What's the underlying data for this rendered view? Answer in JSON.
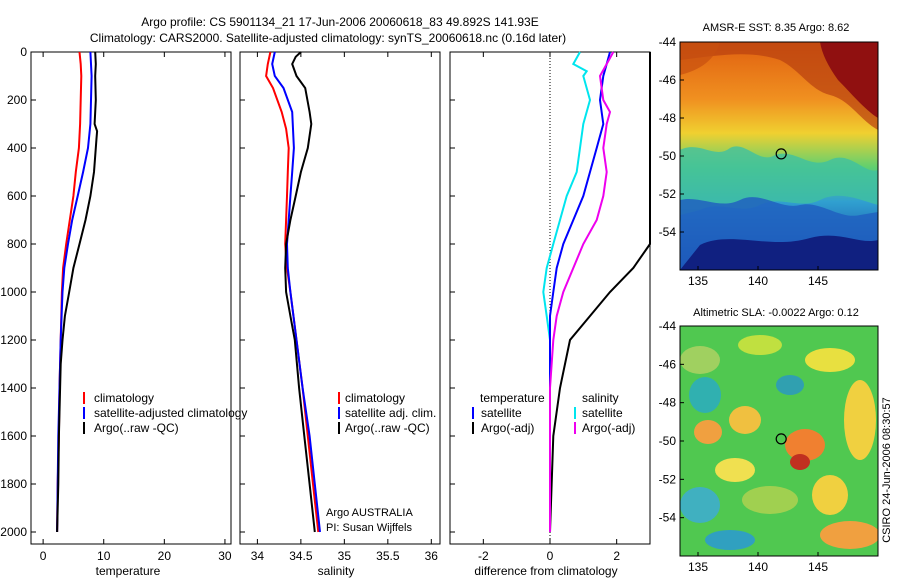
{
  "header": {
    "line1": "Argo profile: CS 5901134_21 17-Jun-2006 20060618_83 49.892S 141.93E",
    "line2": "Climatology: CARS2000. Satellite-adjusted climatology: synTS_20060618.nc (0.16d later)"
  },
  "credit": "CSIRO 24-Jun-2006 08:30:57",
  "colors": {
    "climatology": "#ff0000",
    "satellite": "#0000ff",
    "argo": "#000000",
    "temp_satellite_diff": "#00e5ee",
    "salinity_argo_diff": "#ee00ee"
  },
  "chart_data": [
    {
      "type": "line",
      "name": "temperature-profile",
      "xlabel": "temperature",
      "xlim": [
        -2,
        31
      ],
      "ylim": [
        0,
        2050
      ],
      "y_reversed": true,
      "xticks": [
        0,
        10,
        20,
        30
      ],
      "yticks": [
        0,
        200,
        400,
        600,
        800,
        1000,
        1200,
        1400,
        1600,
        1800,
        2000
      ],
      "legend": [
        "climatology",
        "satellite-adjusted climatology",
        "Argo(..raw -QC)"
      ],
      "series": [
        {
          "key": "climatology",
          "color": "#ff0000",
          "points": [
            [
              6.0,
              0
            ],
            [
              6.2,
              50
            ],
            [
              6.3,
              100
            ],
            [
              6.2,
              200
            ],
            [
              6.1,
              300
            ],
            [
              5.9,
              400
            ],
            [
              5.4,
              500
            ],
            [
              5.0,
              600
            ],
            [
              4.4,
              700
            ],
            [
              3.8,
              800
            ],
            [
              3.3,
              900
            ],
            [
              3.1,
              1000
            ],
            [
              2.9,
              1200
            ],
            [
              2.7,
              1400
            ],
            [
              2.6,
              1600
            ],
            [
              2.4,
              1800
            ],
            [
              2.3,
              2000
            ]
          ]
        },
        {
          "key": "satellite",
          "color": "#0000ff",
          "points": [
            [
              7.8,
              0
            ],
            [
              7.9,
              50
            ],
            [
              8.0,
              100
            ],
            [
              7.9,
              200
            ],
            [
              7.8,
              300
            ],
            [
              7.4,
              400
            ],
            [
              6.6,
              500
            ],
            [
              5.7,
              600
            ],
            [
              4.8,
              700
            ],
            [
              4.1,
              800
            ],
            [
              3.5,
              900
            ],
            [
              3.2,
              1000
            ],
            [
              2.9,
              1200
            ],
            [
              2.7,
              1400
            ],
            [
              2.5,
              1600
            ],
            [
              2.4,
              1800
            ],
            [
              2.3,
              2000
            ]
          ]
        },
        {
          "key": "argo",
          "color": "#000000",
          "points": [
            [
              8.6,
              0
            ],
            [
              8.7,
              50
            ],
            [
              8.6,
              100
            ],
            [
              8.7,
              200
            ],
            [
              8.5,
              300
            ],
            [
              8.9,
              330
            ],
            [
              8.8,
              360
            ],
            [
              8.7,
              400
            ],
            [
              8.4,
              500
            ],
            [
              7.8,
              600
            ],
            [
              7.0,
              700
            ],
            [
              6.0,
              800
            ],
            [
              5.0,
              900
            ],
            [
              4.3,
              1000
            ],
            [
              3.6,
              1100
            ],
            [
              3.2,
              1200
            ],
            [
              2.9,
              1300
            ],
            [
              2.8,
              1400
            ],
            [
              2.6,
              1600
            ],
            [
              2.5,
              1800
            ],
            [
              2.3,
              2000
            ]
          ]
        }
      ]
    },
    {
      "type": "line",
      "name": "salinity-profile",
      "xlabel": "salinity",
      "xlim": [
        33.8,
        36.1
      ],
      "ylim": [
        0,
        2050
      ],
      "y_reversed": true,
      "xticks": [
        34,
        34.5,
        35,
        35.5,
        36
      ],
      "xticklabels": [
        "34",
        "34.5",
        "35",
        "35.5",
        "36"
      ],
      "legend": [
        "climatology",
        "satellite adj. clim.",
        "Argo(..raw -QC)"
      ],
      "annotation": [
        "Argo AUSTRALIA",
        "PI: Susan Wijffels"
      ],
      "series": [
        {
          "key": "climatology",
          "color": "#ff0000",
          "points": [
            [
              34.15,
              0
            ],
            [
              34.12,
              50
            ],
            [
              34.1,
              100
            ],
            [
              34.18,
              150
            ],
            [
              34.28,
              250
            ],
            [
              34.33,
              320
            ],
            [
              34.36,
              400
            ],
            [
              34.35,
              500
            ],
            [
              34.34,
              600
            ],
            [
              34.33,
              700
            ],
            [
              34.32,
              800
            ],
            [
              34.34,
              900
            ],
            [
              34.38,
              1000
            ],
            [
              34.45,
              1200
            ],
            [
              34.52,
              1400
            ],
            [
              34.58,
              1600
            ],
            [
              34.64,
              1800
            ],
            [
              34.7,
              2000
            ]
          ]
        },
        {
          "key": "satellite",
          "color": "#0000ff",
          "points": [
            [
              34.2,
              0
            ],
            [
              34.17,
              50
            ],
            [
              34.2,
              100
            ],
            [
              34.3,
              150
            ],
            [
              34.4,
              250
            ],
            [
              34.42,
              400
            ],
            [
              34.4,
              500
            ],
            [
              34.38,
              600
            ],
            [
              34.36,
              700
            ],
            [
              34.34,
              800
            ],
            [
              34.35,
              900
            ],
            [
              34.38,
              1000
            ],
            [
              34.45,
              1200
            ],
            [
              34.52,
              1400
            ],
            [
              34.6,
              1600
            ],
            [
              34.66,
              1800
            ],
            [
              34.72,
              2000
            ]
          ]
        },
        {
          "key": "argo",
          "color": "#000000",
          "points": [
            [
              34.5,
              0
            ],
            [
              34.44,
              20
            ],
            [
              34.4,
              50
            ],
            [
              34.45,
              100
            ],
            [
              34.55,
              150
            ],
            [
              34.6,
              250
            ],
            [
              34.62,
              300
            ],
            [
              34.58,
              400
            ],
            [
              34.5,
              500
            ],
            [
              34.44,
              600
            ],
            [
              34.38,
              700
            ],
            [
              34.33,
              800
            ],
            [
              34.32,
              900
            ],
            [
              34.33,
              1000
            ],
            [
              34.38,
              1100
            ],
            [
              34.43,
              1200
            ],
            [
              34.48,
              1400
            ],
            [
              34.54,
              1600
            ],
            [
              34.6,
              1800
            ],
            [
              34.66,
              2000
            ]
          ]
        }
      ]
    },
    {
      "type": "line",
      "name": "difference-profile",
      "xlabel": "difference from climatology",
      "xlim": [
        -3,
        3
      ],
      "ylim": [
        0,
        2050
      ],
      "y_reversed": true,
      "xticks": [
        -2,
        0,
        2
      ],
      "legend_temperature": [
        "temperature",
        "satellite",
        "Argo(-adj)"
      ],
      "legend_salinity": [
        "salinity",
        "satellite",
        "Argo(-adj)"
      ],
      "series": [
        {
          "key": "temp_satellite",
          "color": "#00e5ee",
          "points": [
            [
              0.9,
              0
            ],
            [
              0.7,
              50
            ],
            [
              1.1,
              80
            ],
            [
              1.0,
              100
            ],
            [
              1.2,
              200
            ],
            [
              1.0,
              300
            ],
            [
              0.9,
              400
            ],
            [
              0.8,
              500
            ],
            [
              0.5,
              600
            ],
            [
              0.3,
              700
            ],
            [
              0.1,
              800
            ],
            [
              -0.1,
              900
            ],
            [
              -0.2,
              1000
            ],
            [
              -0.1,
              1100
            ],
            [
              0,
              1200
            ],
            [
              0,
              1600
            ],
            [
              0,
              2000
            ]
          ]
        },
        {
          "key": "temp_argo",
          "color": "#0000ff",
          "points": [
            [
              1.8,
              0
            ],
            [
              1.7,
              50
            ],
            [
              1.6,
              100
            ],
            [
              1.5,
              200
            ],
            [
              1.6,
              300
            ],
            [
              1.4,
              400
            ],
            [
              1.2,
              500
            ],
            [
              1.0,
              600
            ],
            [
              0.7,
              700
            ],
            [
              0.4,
              800
            ],
            [
              0.2,
              900
            ],
            [
              0.1,
              1000
            ],
            [
              0,
              1100
            ],
            [
              0,
              1400
            ],
            [
              0,
              1600
            ],
            [
              0,
              2000
            ]
          ]
        },
        {
          "key": "sal_satellite",
          "color": "#000000",
          "points": [
            [
              3.0,
              0
            ],
            [
              3.0,
              100
            ],
            [
              3.0,
              200
            ],
            [
              3.0,
              300
            ],
            [
              3.0,
              400
            ],
            [
              3.0,
              500
            ],
            [
              3.0,
              600
            ],
            [
              3.0,
              700
            ],
            [
              3.0,
              800
            ],
            [
              2.5,
              900
            ],
            [
              1.8,
              1000
            ],
            [
              1.2,
              1100
            ],
            [
              0.6,
              1200
            ],
            [
              0.3,
              1400
            ],
            [
              0.1,
              1600
            ],
            [
              0,
              2000
            ]
          ]
        },
        {
          "key": "sal_argo",
          "color": "#ee00ee",
          "points": [
            [
              1.9,
              0
            ],
            [
              1.7,
              50
            ],
            [
              1.5,
              100
            ],
            [
              1.6,
              200
            ],
            [
              1.8,
              250
            ],
            [
              1.7,
              300
            ],
            [
              1.6,
              400
            ],
            [
              1.7,
              500
            ],
            [
              1.6,
              600
            ],
            [
              1.4,
              700
            ],
            [
              1.0,
              800
            ],
            [
              0.7,
              900
            ],
            [
              0.4,
              1000
            ],
            [
              0.2,
              1100
            ],
            [
              0.1,
              1200
            ],
            [
              0,
              1400
            ],
            [
              0,
              2000
            ]
          ]
        }
      ]
    },
    {
      "type": "heatmap",
      "name": "amsr-sst-map",
      "title": "AMSR-E SST: 8.35 Argo: 8.62",
      "xlim": [
        133.5,
        150
      ],
      "ylim": [
        -56,
        -44
      ],
      "xticks": [
        135,
        140,
        145
      ],
      "yticks": [
        -44,
        -46,
        -48,
        -50,
        -52,
        -54
      ],
      "marker": {
        "lon": 141.93,
        "lat": -49.892
      }
    },
    {
      "type": "heatmap",
      "name": "altimetric-sla-map",
      "title": "Altimetric SLA: -0.0022 Argo: 0.12",
      "xlim": [
        133.5,
        150
      ],
      "ylim": [
        -56,
        -44
      ],
      "xticks": [
        135,
        140,
        145
      ],
      "yticks": [
        -44,
        -46,
        -48,
        -50,
        -52,
        -54
      ],
      "marker": {
        "lon": 141.93,
        "lat": -49.892
      }
    }
  ]
}
